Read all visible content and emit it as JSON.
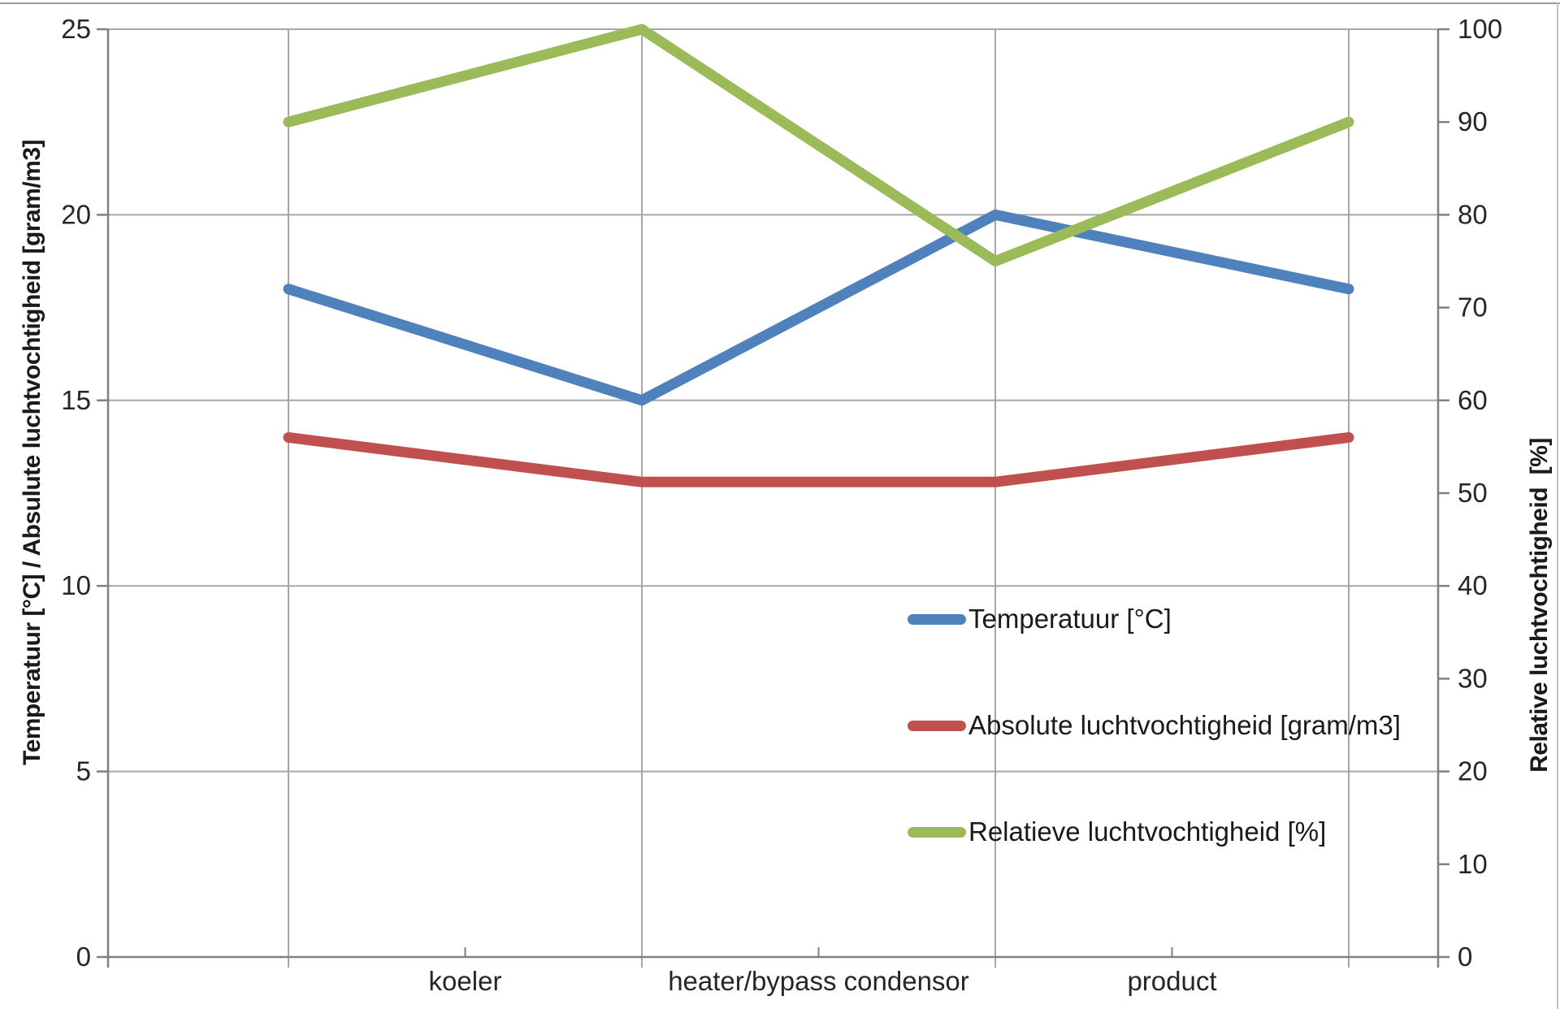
{
  "chart_data": {
    "type": "line",
    "title": "",
    "x_tick_labels": [
      "koeler",
      "heater/bypass condensor",
      "product"
    ],
    "left_axis": {
      "title": "Temperatuur [°C] / Absulute luchtvochtigheid [gram/m3]",
      "min": 0,
      "max": 25,
      "tick_step": 5,
      "tick_labels": [
        "0",
        "5",
        "10",
        "15",
        "20",
        "25"
      ]
    },
    "right_axis": {
      "title": "Relative luchtvochtigheid  [%]",
      "min": 0,
      "max": 100,
      "tick_step": 10,
      "tick_labels": [
        "0",
        "10",
        "20",
        "30",
        "40",
        "50",
        "60",
        "70",
        "80",
        "90",
        "100"
      ]
    },
    "grid": true,
    "legend_position": "inside-right",
    "series": [
      {
        "name": "Temperatuur [°C]",
        "color": "#4F81BD",
        "axis": "left",
        "values": [
          18,
          15,
          20,
          18
        ]
      },
      {
        "name": "Absolute luchtvochtigheid [gram/m3]",
        "color": "#C0504D",
        "axis": "left",
        "values": [
          14,
          12.8,
          12.8,
          14
        ]
      },
      {
        "name": "Relatieve luchtvochtigheid [%]",
        "color": "#9BBB59",
        "axis": "right",
        "values": [
          90,
          100,
          75,
          90
        ]
      }
    ]
  },
  "colors": {
    "gridline": "#A6A6A6",
    "axis_line": "#808080",
    "tick_text": "#262626"
  }
}
